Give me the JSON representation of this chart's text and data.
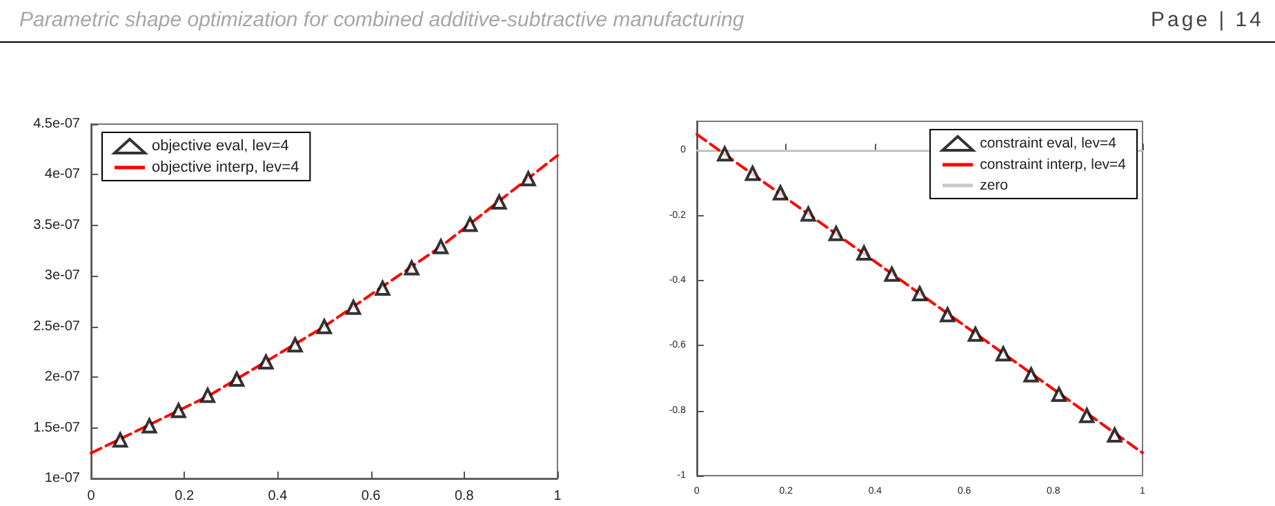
{
  "chart_data": [
    {
      "type": "line",
      "annotations": [
        "Parametric shape optimization for combined additive-subtractive manufacturing",
        "Page | 14"
      ],
      "xlim": [
        0,
        1
      ],
      "xticks": [
        0,
        0.2,
        0.4,
        0.6,
        0.8,
        1
      ],
      "ylim": [
        1e-07,
        4.5e-07
      ],
      "yticks": [
        {
          "value": 1e-07,
          "label": "1e-07"
        },
        {
          "value": 1.5e-07,
          "label": "1.5e-07"
        },
        {
          "value": 2e-07,
          "label": "2e-07"
        },
        {
          "value": 2.5e-07,
          "label": "2.5e-07"
        },
        {
          "value": 3e-07,
          "label": "3e-07"
        },
        {
          "value": 3.5e-07,
          "label": "3.5e-07"
        },
        {
          "value": 4e-07,
          "label": "4e-07"
        },
        {
          "value": 4.5e-07,
          "label": "4.5e-07"
        }
      ],
      "legend": "top left",
      "series": [
        {
          "name": "objective eval, lev=4",
          "type": "scatter",
          "marker": "triangle",
          "color": "#000000",
          "x": [
            0.0625,
            0.125,
            0.1875,
            0.25,
            0.3125,
            0.375,
            0.4375,
            0.5,
            0.5625,
            0.625,
            0.6875,
            0.75,
            0.8125,
            0.875,
            0.9375
          ],
          "values": [
            1.38e-07,
            1.52e-07,
            1.67e-07,
            1.82e-07,
            1.98e-07,
            2.15e-07,
            2.32e-07,
            2.5e-07,
            2.69e-07,
            2.88e-07,
            3.08e-07,
            3.29e-07,
            3.51e-07,
            3.73e-07,
            3.96e-07
          ]
        },
        {
          "name": "objective interp, lev=4",
          "type": "line",
          "marker": "none",
          "line_style": "dashed",
          "color": "#ff0000",
          "x": [
            0,
            0.25,
            0.5,
            0.75,
            1
          ],
          "values": [
            1.25e-07,
            1.81e-07,
            2.5e-07,
            3.29e-07,
            4.19e-07
          ]
        }
      ]
    },
    {
      "type": "line",
      "xlim": [
        0,
        1
      ],
      "xticks": [
        0,
        0.2,
        0.4,
        0.6,
        0.8,
        1
      ],
      "ylim": [
        -1,
        0.09
      ],
      "yticks": [
        -1,
        -0.8,
        -0.6,
        -0.4,
        -0.2,
        0
      ],
      "legend": "top right",
      "series": [
        {
          "name": "constraint eval, lev=4",
          "type": "scatter",
          "marker": "triangle",
          "color": "#000000",
          "x": [
            0.0625,
            0.125,
            0.1875,
            0.25,
            0.3125,
            0.375,
            0.4375,
            0.5,
            0.5625,
            0.625,
            0.6875,
            0.75,
            0.8125,
            0.875,
            0.9375
          ],
          "values": [
            -0.01,
            -0.07,
            -0.13,
            -0.195,
            -0.255,
            -0.315,
            -0.38,
            -0.44,
            -0.505,
            -0.565,
            -0.625,
            -0.69,
            -0.75,
            -0.815,
            -0.875
          ]
        },
        {
          "name": "constraint interp, lev=4",
          "type": "line",
          "marker": "none",
          "line_style": "dashed",
          "color": "#ff0000",
          "x": [
            0,
            0.25,
            0.5,
            0.75,
            1
          ],
          "values": [
            0.05,
            -0.195,
            -0.44,
            -0.685,
            -0.93
          ]
        },
        {
          "name": "zero",
          "type": "line",
          "marker": "none",
          "line_style": "solid",
          "color": "#c8c8c8",
          "x": [
            0,
            1
          ],
          "values": [
            0,
            0
          ]
        }
      ]
    }
  ]
}
